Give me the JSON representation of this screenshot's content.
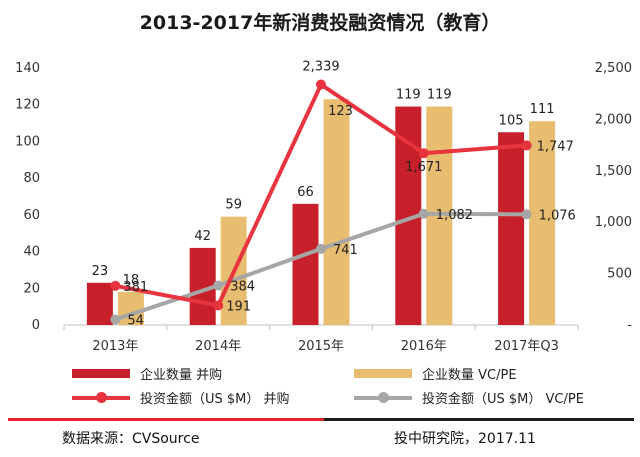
{
  "title": "2013-2017年新消费投融资情况（教育）",
  "colors": {
    "ma_bar": "#c8202a",
    "vc_bar": "#e8bd70",
    "ma_line": "#e8343f",
    "vc_line": "#a6a6a6"
  },
  "chart_data": {
    "type": "bar",
    "title": "2013-2017年新消费投融资情况（教育）",
    "categories": [
      "2013年",
      "2014年",
      "2015年",
      "2016年",
      "2017年Q3"
    ],
    "series": [
      {
        "name": "企业数量 并购",
        "type": "bar",
        "axis": "left",
        "values": [
          23,
          42,
          66,
          119,
          105
        ]
      },
      {
        "name": "企业数量 VC/PE",
        "type": "bar",
        "axis": "left",
        "values": [
          18,
          59,
          123,
          119,
          111
        ]
      },
      {
        "name": "投资金额（US $M） 并购",
        "type": "line",
        "axis": "right",
        "values": [
          381,
          191,
          2339,
          1671,
          1747
        ]
      },
      {
        "name": "投资金额（US $M） VC/PE",
        "type": "line",
        "axis": "right",
        "values": [
          54,
          384,
          741,
          1082,
          1076
        ]
      }
    ],
    "data_labels": {
      "ma_bar": [
        "23",
        "42",
        "66",
        "119",
        "105"
      ],
      "vc_bar": [
        "18",
        "59",
        "123",
        "119",
        "111"
      ],
      "ma_line": [
        "381",
        "191",
        "2,339",
        "1,671",
        "1,747"
      ],
      "vc_line": [
        "54",
        "384",
        "741",
        "1,082",
        "1,076"
      ]
    },
    "left_axis": {
      "min": 0,
      "max": 140,
      "ticks": [
        "0",
        "20",
        "40",
        "60",
        "80",
        "100",
        "120",
        "140"
      ]
    },
    "right_axis": {
      "min": 0,
      "max": 2500,
      "ticks": [
        "-",
        "500",
        "1,000",
        "1,500",
        "2,000",
        "2,500"
      ]
    },
    "legend_position": "bottom"
  },
  "legend": {
    "ma_bar": "企业数量 并购",
    "vc_bar": "企业数量 VC/PE",
    "ma_line": "投资金额（US $M） 并购",
    "vc_line": "投资金额（US $M） VC/PE"
  },
  "footer": {
    "source": "数据来源：CVSource",
    "org": "投中研究院，2017.11"
  }
}
